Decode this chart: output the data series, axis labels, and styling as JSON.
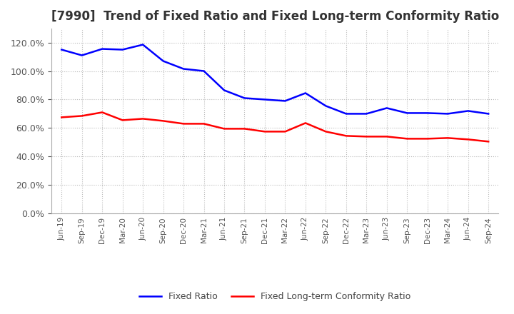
{
  "title": "[7990]  Trend of Fixed Ratio and Fixed Long-term Conformity Ratio",
  "labels": [
    "Jun-19",
    "Sep-19",
    "Dec-19",
    "Mar-20",
    "Jun-20",
    "Sep-20",
    "Dec-20",
    "Mar-21",
    "Jun-21",
    "Sep-21",
    "Dec-21",
    "Mar-22",
    "Jun-22",
    "Sep-22",
    "Dec-22",
    "Mar-23",
    "Jun-23",
    "Sep-23",
    "Dec-23",
    "Mar-24",
    "Jun-24",
    "Sep-24"
  ],
  "fixed_ratio": [
    115.0,
    111.0,
    115.5,
    115.0,
    118.5,
    107.0,
    101.5,
    100.0,
    86.5,
    81.0,
    80.0,
    79.0,
    84.5,
    75.5,
    70.0,
    70.0,
    74.0,
    70.5,
    70.5,
    70.0,
    72.0,
    70.0
  ],
  "fixed_lt_ratio": [
    67.5,
    68.5,
    71.0,
    65.5,
    66.5,
    65.0,
    63.0,
    63.0,
    59.5,
    59.5,
    57.5,
    57.5,
    63.5,
    57.5,
    54.5,
    54.0,
    54.0,
    52.5,
    52.5,
    53.0,
    52.0,
    50.5
  ],
  "fixed_ratio_color": "#0000FF",
  "fixed_lt_ratio_color": "#FF0000",
  "ylim": [
    0,
    130
  ],
  "yticks": [
    0,
    20,
    40,
    60,
    80,
    100,
    120
  ],
  "background_color": "#FFFFFF",
  "plot_bg_color": "#FFFFFF",
  "grid_color": "#BBBBBB",
  "title_fontsize": 12,
  "tick_color": "#555555",
  "legend_labels": [
    "Fixed Ratio",
    "Fixed Long-term Conformity Ratio"
  ]
}
